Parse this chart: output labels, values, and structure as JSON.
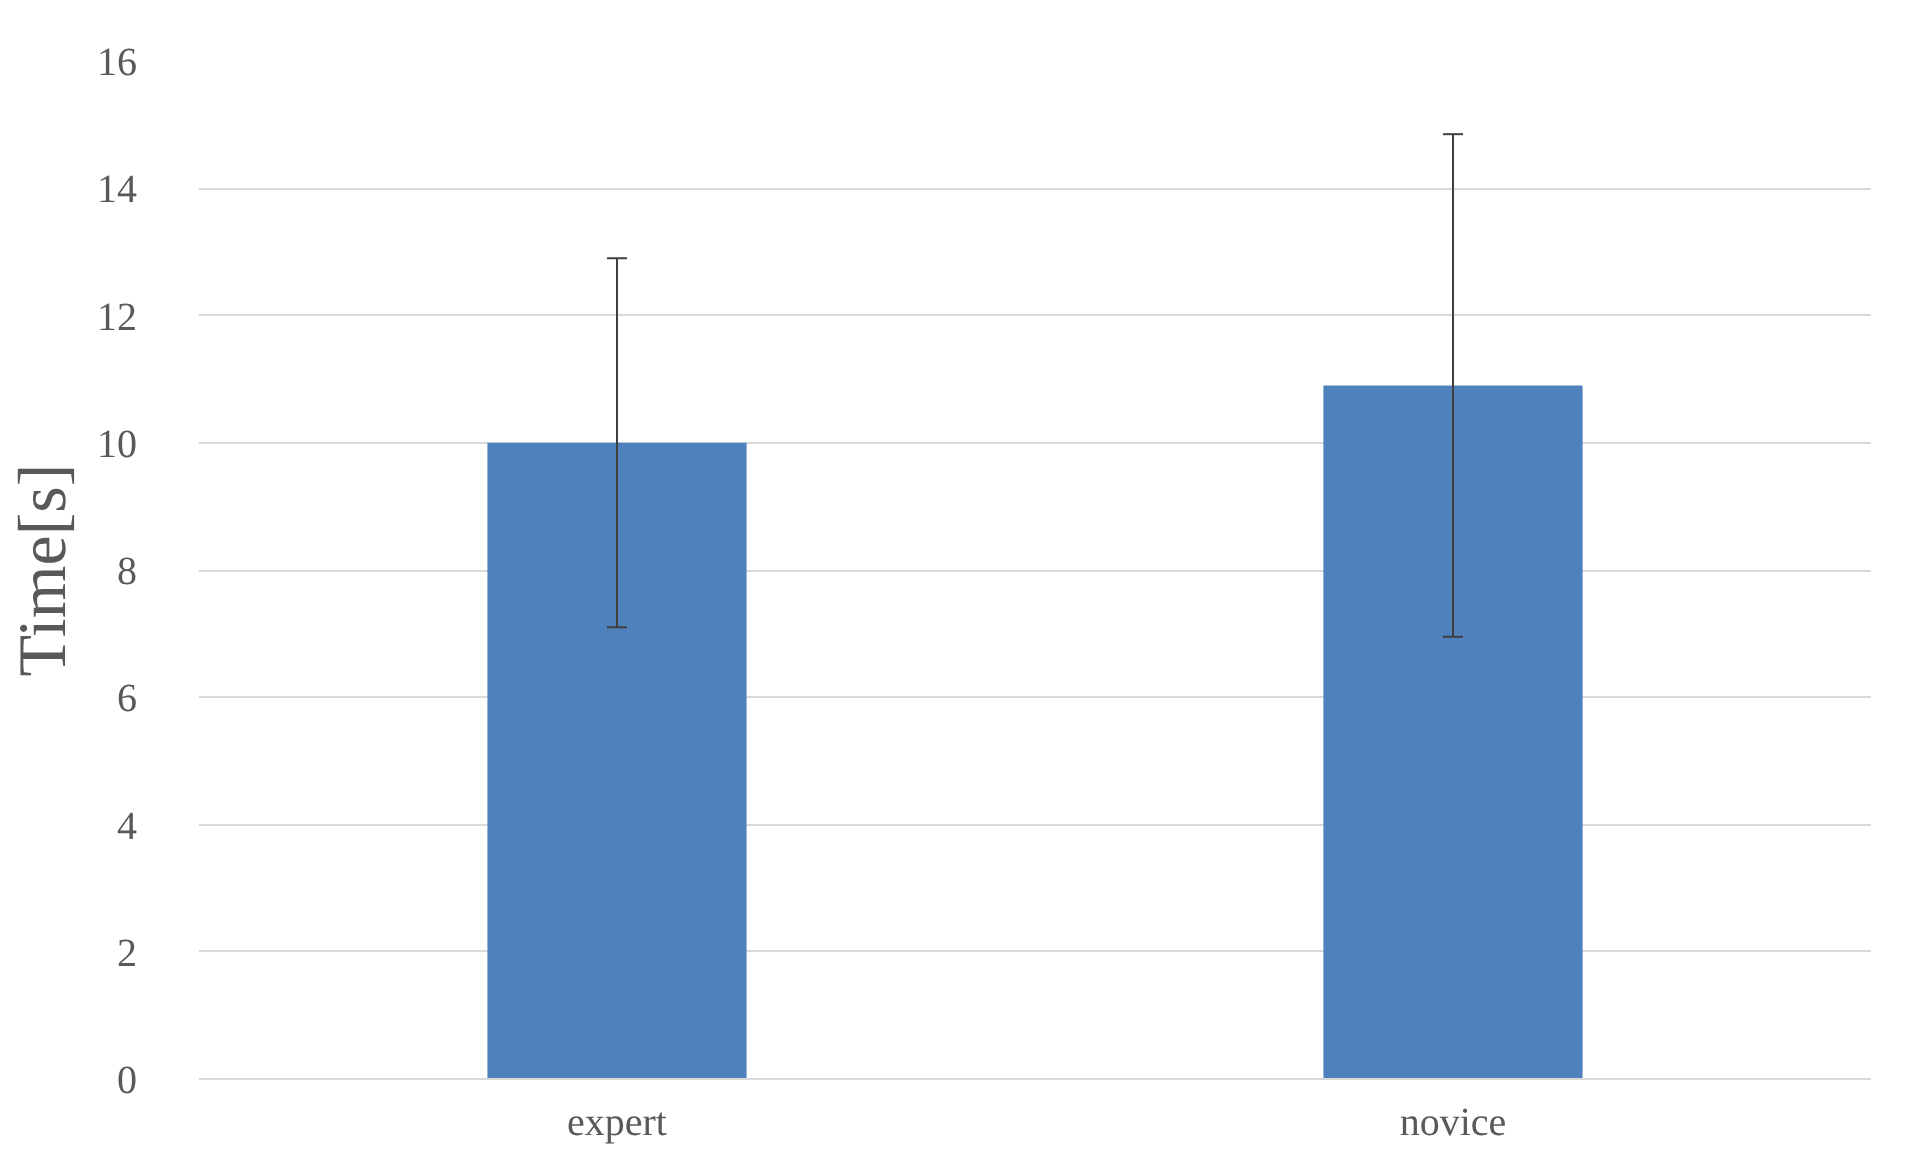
{
  "chart_data": {
    "type": "bar",
    "ylabel": "Time[s]",
    "categories": [
      "expert",
      "novice"
    ],
    "values": [
      10.0,
      10.9
    ],
    "errors": [
      2.9,
      3.95
    ],
    "color": "#4f81bd",
    "ylim": [
      0,
      16
    ],
    "yticks": [
      0,
      2,
      4,
      6,
      8,
      10,
      12,
      14,
      16
    ],
    "grid": "y"
  }
}
